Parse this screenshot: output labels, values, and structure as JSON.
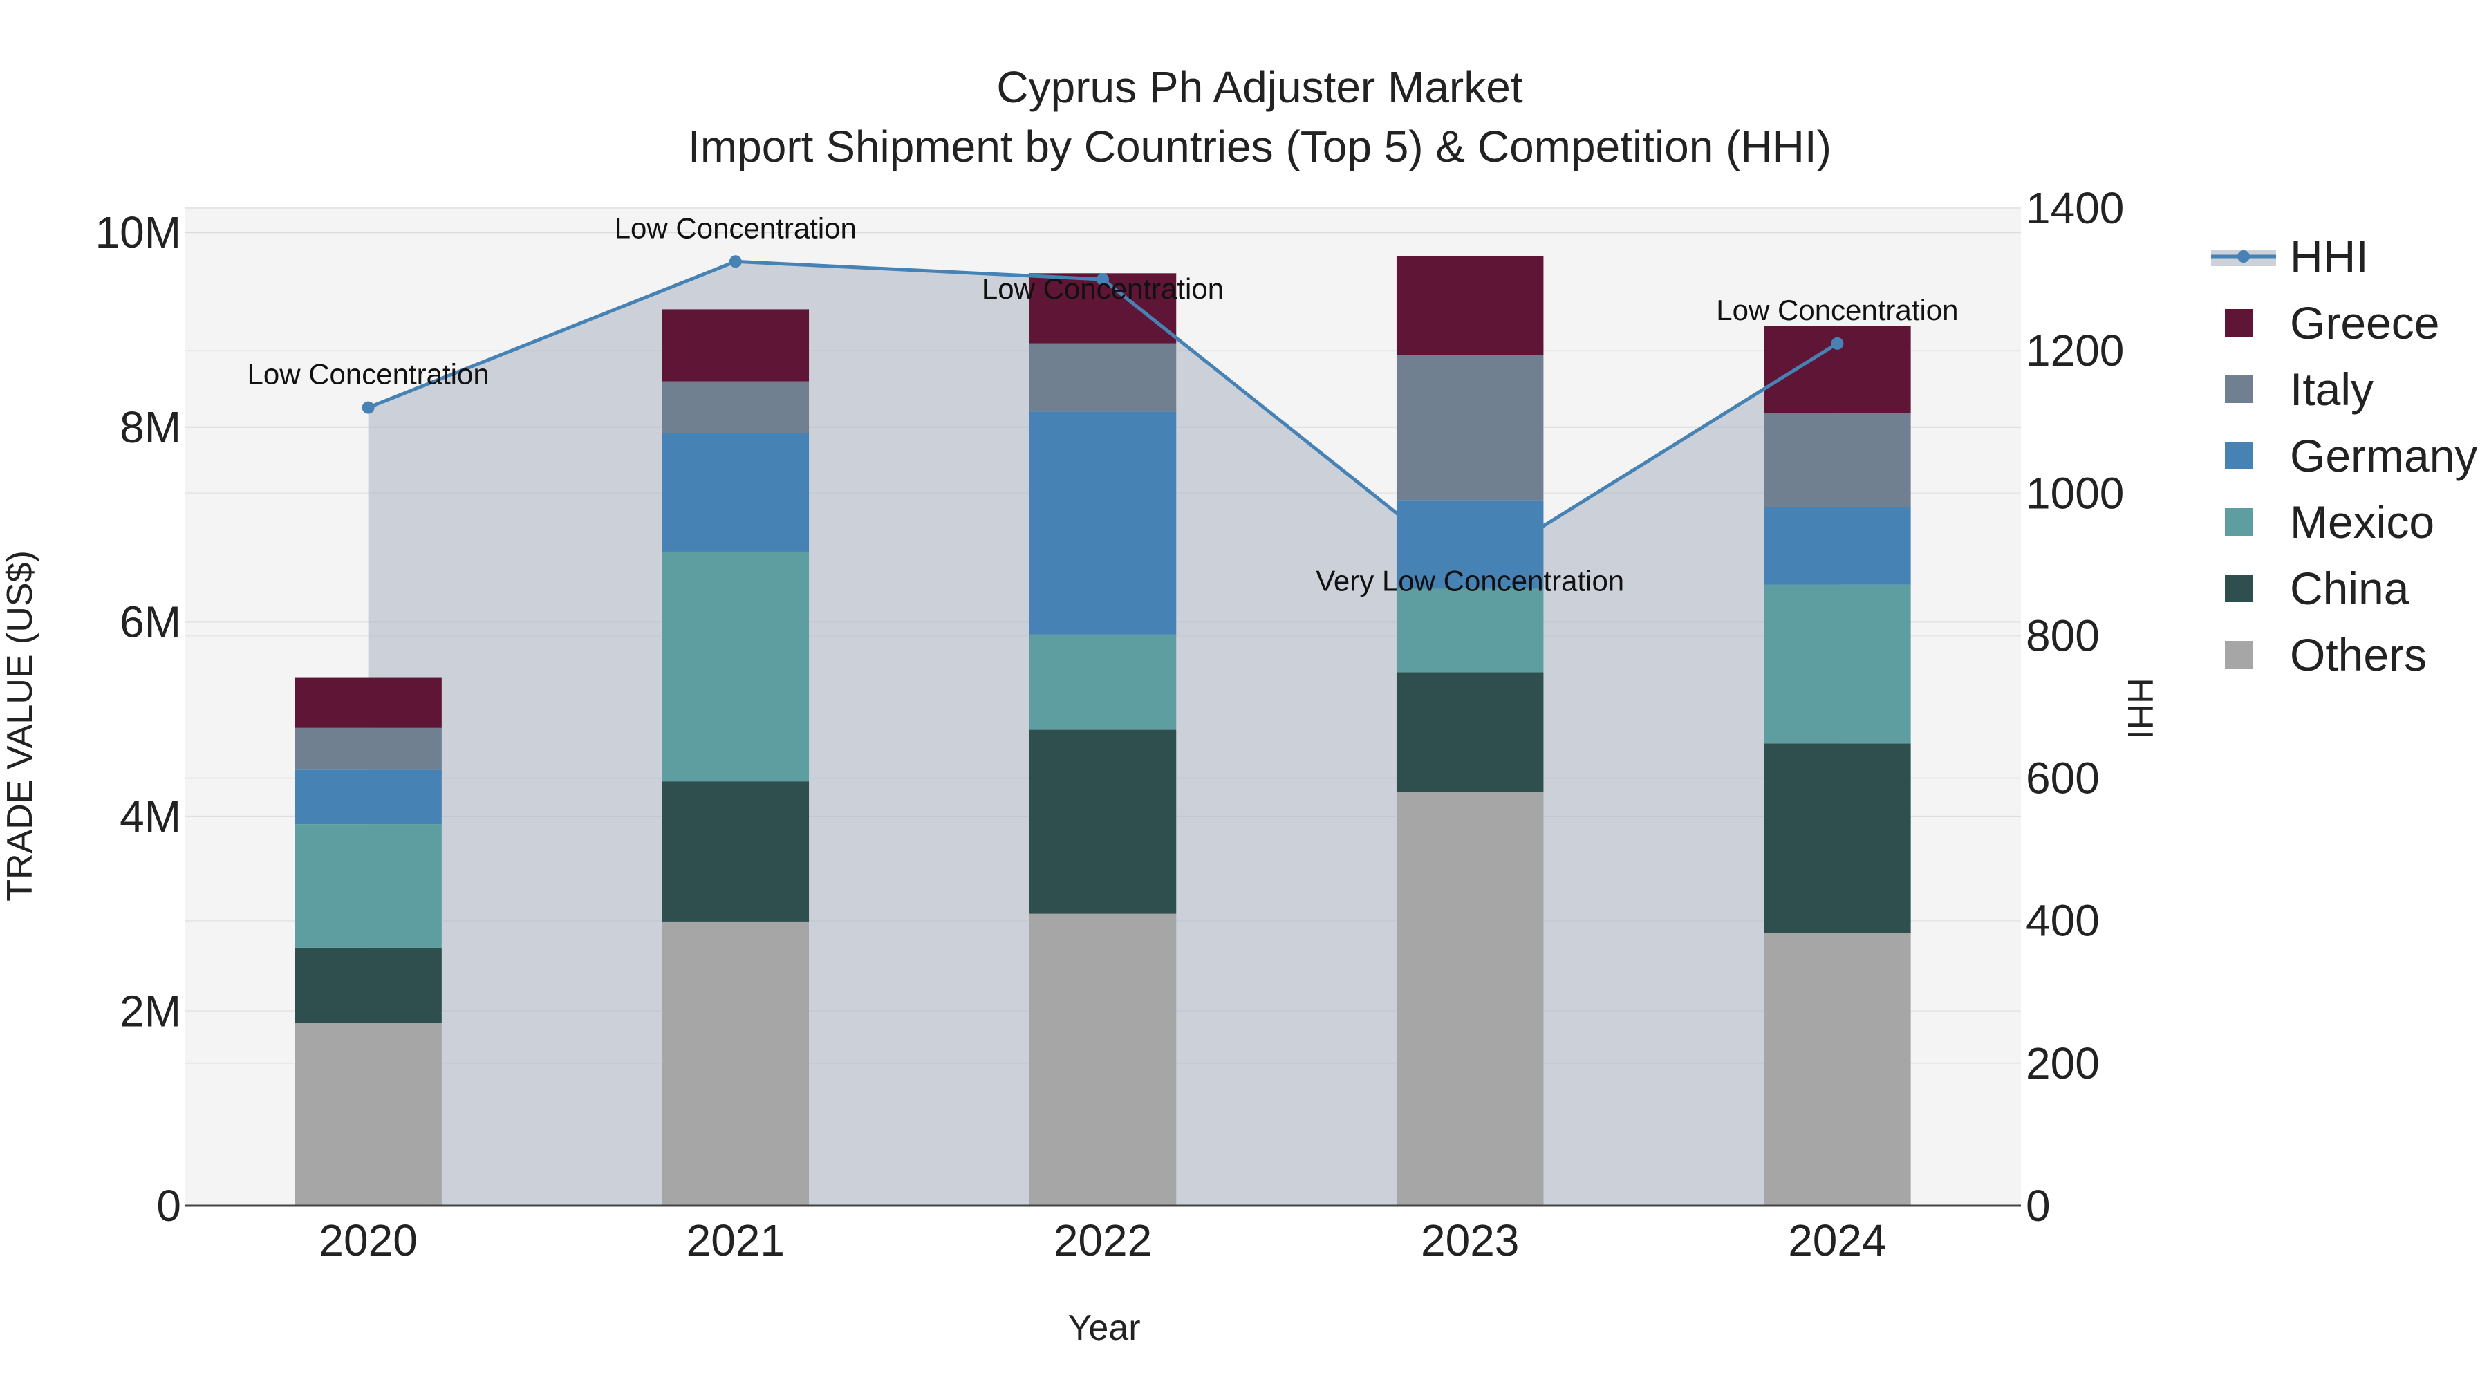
{
  "chart_data": {
    "type": "bar",
    "title": "Cyprus Ph Adjuster Market",
    "subtitle": "Import Shipment by Countries (Top 5) & Competition (HHI)",
    "xlabel": "Year",
    "ylabel": "TRADE VALUE (US$)",
    "y2label": "HHI",
    "categories": [
      "2020",
      "2021",
      "2022",
      "2023",
      "2024"
    ],
    "ylim": [
      0,
      10250000
    ],
    "y2lim": [
      0,
      1400
    ],
    "yticks": [
      0,
      2000000,
      4000000,
      6000000,
      8000000,
      10000000
    ],
    "ytick_labels": [
      "0",
      "2M",
      "4M",
      "6M",
      "8M",
      "10M"
    ],
    "y2ticks": [
      0,
      200,
      400,
      600,
      800,
      1000,
      1200,
      1400
    ],
    "y2tick_labels": [
      "0",
      "200",
      "400",
      "600",
      "800",
      "1000",
      "1200",
      "1400"
    ],
    "series": [
      {
        "name": "Others",
        "color": "#a6a6a6",
        "values": [
          1880000,
          2920000,
          3000000,
          4250000,
          2800000
        ]
      },
      {
        "name": "China",
        "color": "#2f4f4f",
        "values": [
          770000,
          1440000,
          1890000,
          1230000,
          1950000
        ]
      },
      {
        "name": "Mexico",
        "color": "#5f9ea0",
        "values": [
          1270000,
          2360000,
          980000,
          860000,
          1630000
        ]
      },
      {
        "name": "Germany",
        "color": "#4682b4",
        "values": [
          560000,
          1220000,
          2290000,
          910000,
          800000
        ]
      },
      {
        "name": "Italy",
        "color": "#708090",
        "values": [
          430000,
          530000,
          700000,
          1490000,
          960000
        ]
      },
      {
        "name": "Greece",
        "color": "#5f1535",
        "values": [
          520000,
          740000,
          720000,
          1020000,
          900000
        ]
      }
    ],
    "hhi": {
      "name": "HHI",
      "color": "#4682b4",
      "values": [
        1120,
        1325,
        1300,
        890,
        1210
      ],
      "labels": [
        "Low Concentration",
        "Low Concentration",
        "Low Concentration",
        "Very Low Concentration",
        "Low Concentration"
      ]
    },
    "legend": [
      "HHI",
      "Greece",
      "Italy",
      "Germany",
      "Mexico",
      "China",
      "Others"
    ],
    "legend_position": "right",
    "grid": true
  }
}
